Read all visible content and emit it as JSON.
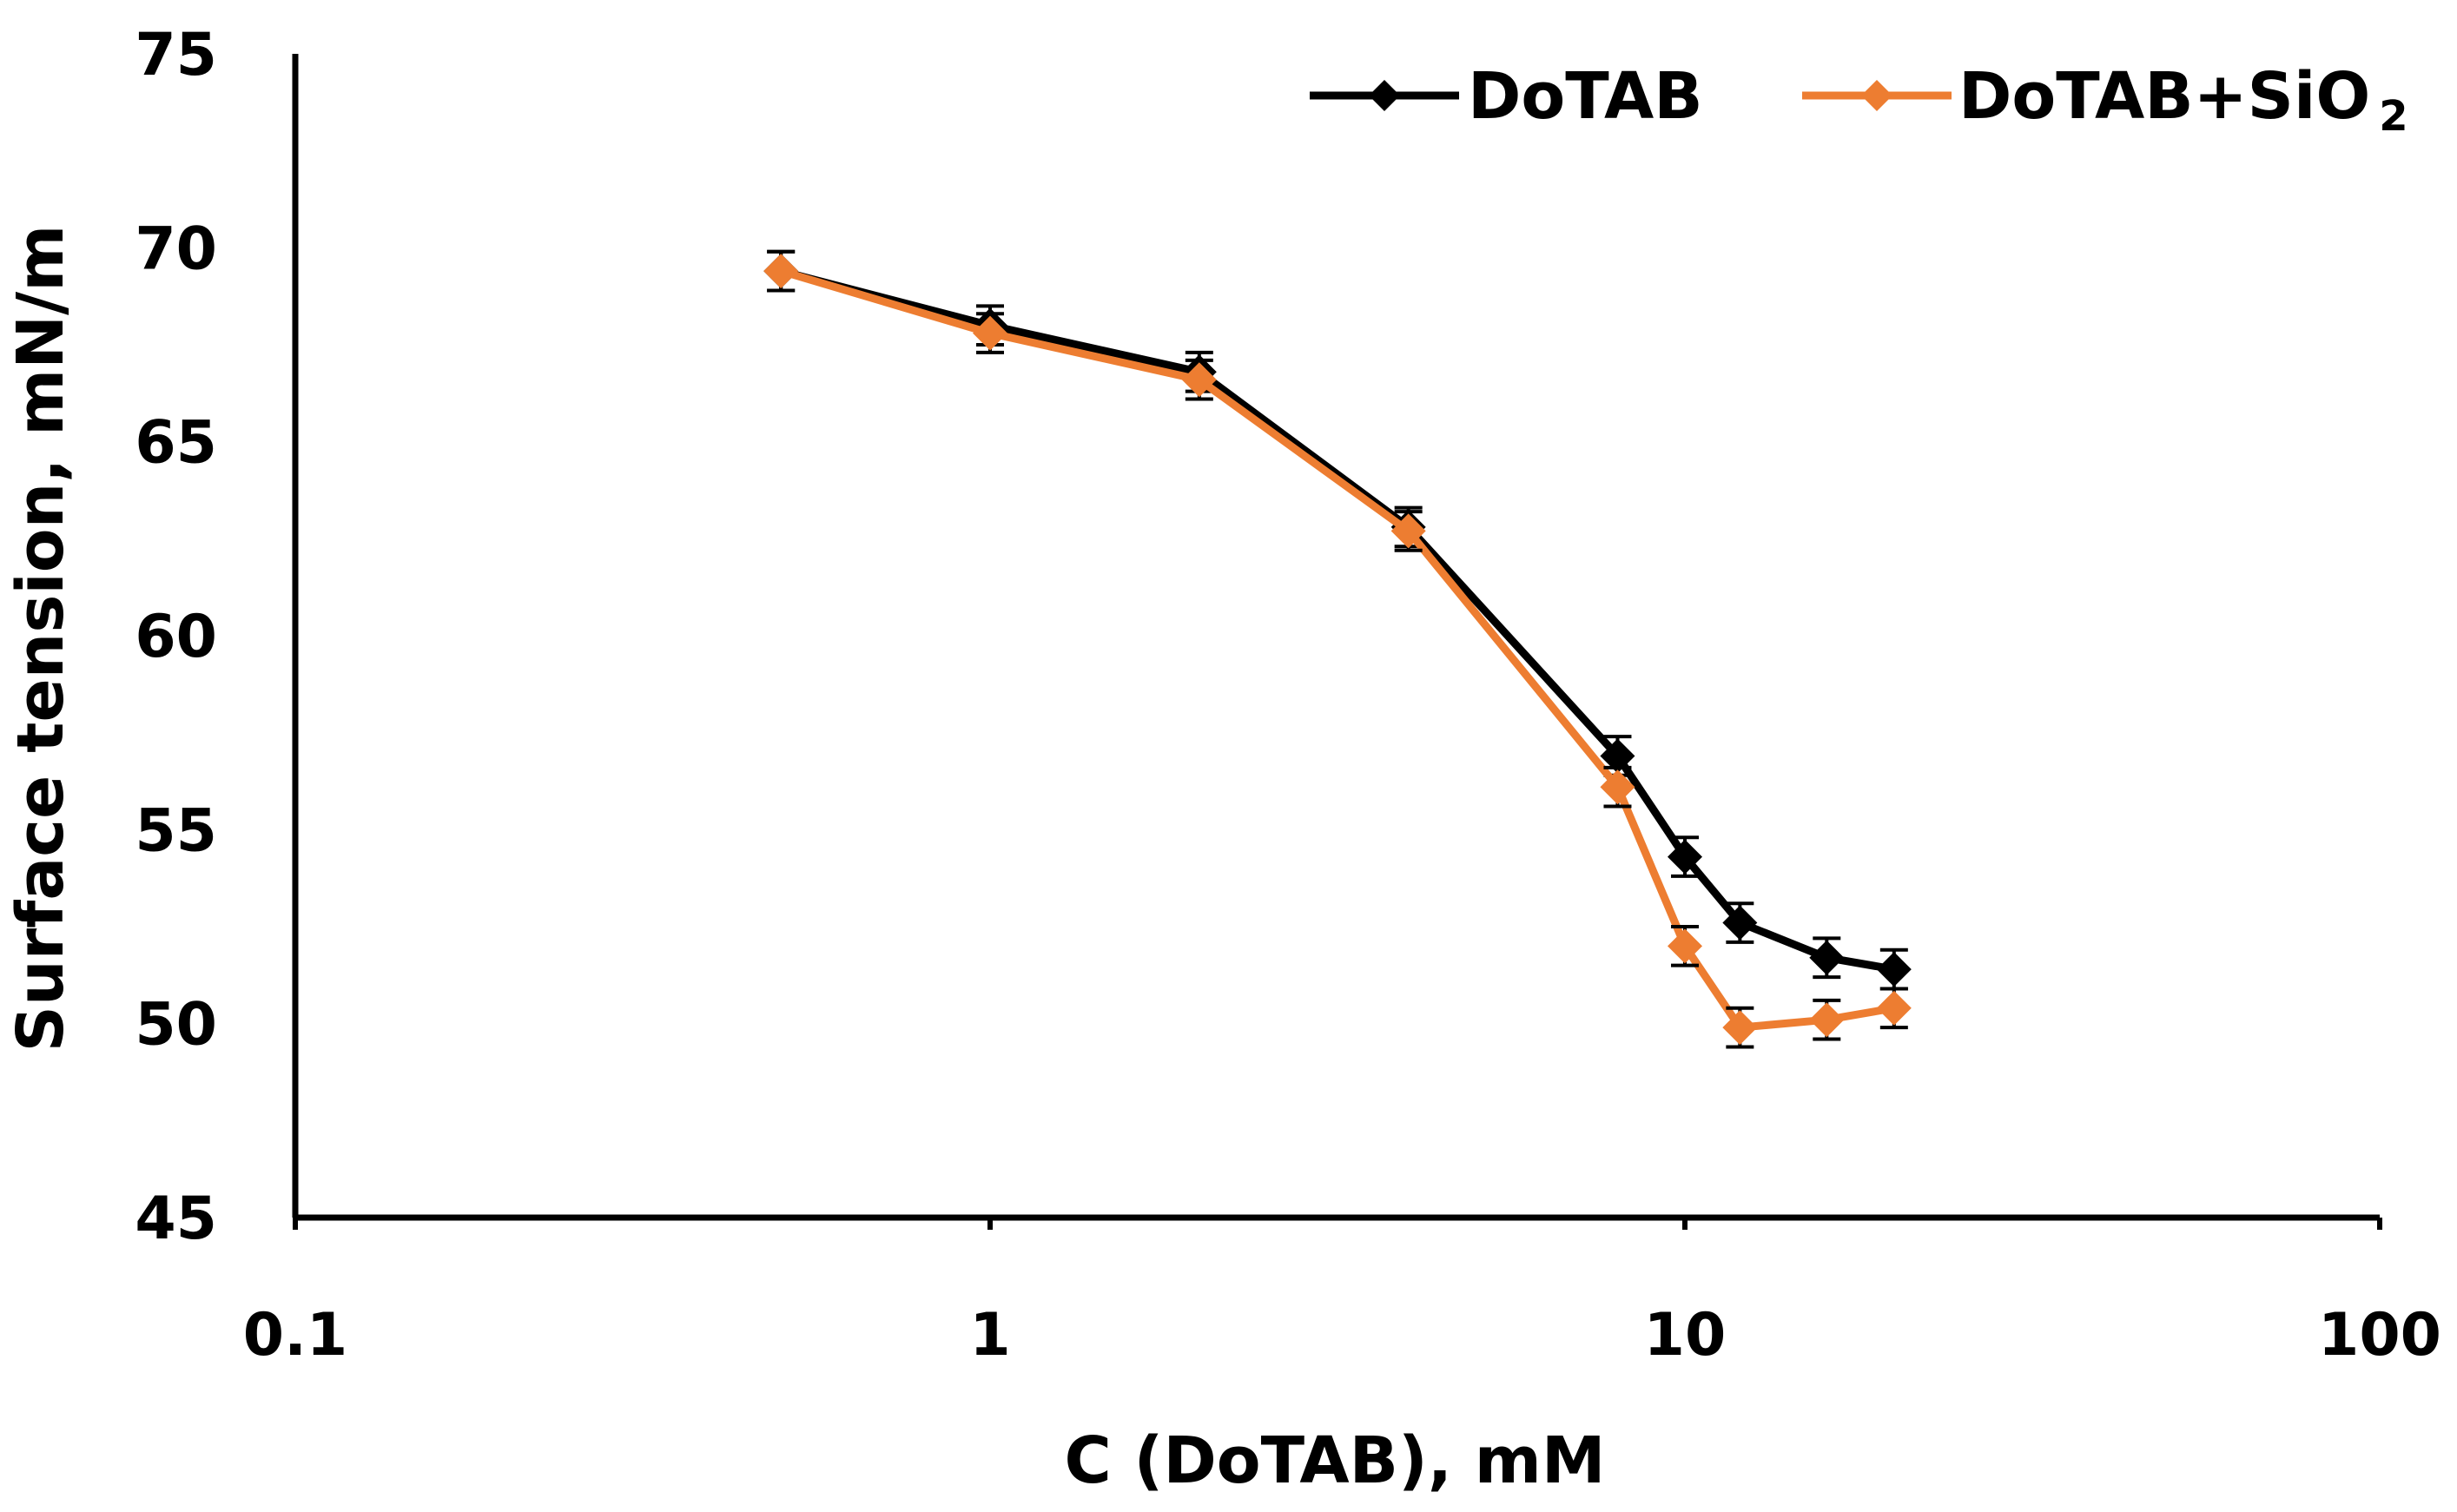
{
  "chart_data": {
    "type": "line",
    "title": "",
    "xlabel": "C (DoTAB), mM",
    "ylabel": "Surface tension, mN/m",
    "xscale": "log",
    "xlim": [
      0.1,
      100
    ],
    "ylim": [
      45,
      75
    ],
    "xticks": [
      0.1,
      1,
      10,
      100
    ],
    "xtick_labels": [
      "0.1",
      "1",
      "10",
      "100"
    ],
    "yticks": [
      45,
      50,
      55,
      60,
      65,
      70,
      75
    ],
    "ytick_labels": [
      "45",
      "50",
      "55",
      "60",
      "65",
      "70",
      "75"
    ],
    "grid": false,
    "legend_position": "top-right",
    "series": [
      {
        "name": "DoTAB",
        "color": "#000000",
        "marker": "diamond",
        "x": [
          0.5,
          1,
          2,
          4,
          8,
          10,
          12,
          16,
          20
        ],
        "y": [
          69.4,
          68.0,
          66.8,
          62.8,
          56.9,
          54.3,
          52.6,
          51.7,
          51.4
        ],
        "error": [
          0.5,
          0.5,
          0.5,
          0.5,
          0.5,
          0.5,
          0.5,
          0.5,
          0.5
        ]
      },
      {
        "name": "DoTAB+SiO",
        "name_subscript": "2",
        "color": "#ED7D31",
        "marker": "diamond",
        "x": [
          0.5,
          1,
          2,
          4,
          8,
          10,
          12,
          16,
          20
        ],
        "y": [
          69.4,
          67.8,
          66.6,
          62.7,
          56.1,
          52.0,
          49.9,
          50.1,
          50.4
        ],
        "error": [
          0.5,
          0.5,
          0.5,
          0.5,
          0.5,
          0.5,
          0.5,
          0.5,
          0.5
        ]
      }
    ]
  }
}
